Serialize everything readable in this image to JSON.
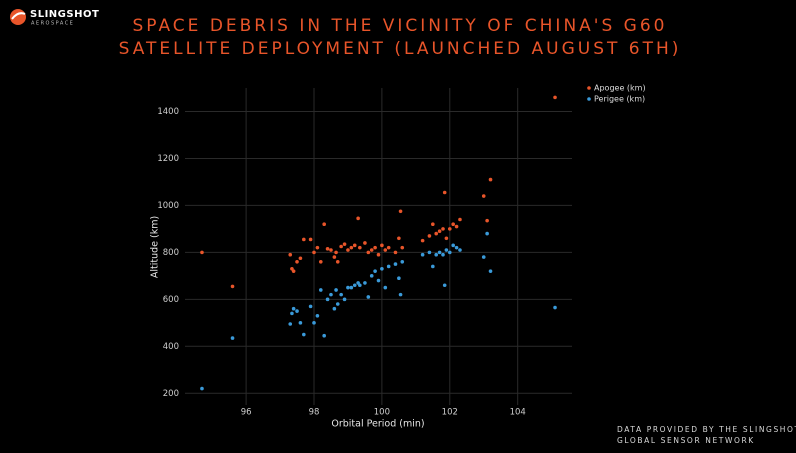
{
  "header": {
    "logo": "SLINGSHOT",
    "logo_sub": "AEROSPACE"
  },
  "footer": [
    "DATA PROVIDED BY THE SLINGSHOT",
    "GLOBAL SENSOR NETWORK"
  ],
  "chart_data": {
    "type": "scatter",
    "title": [
      "SPACE DEBRIS IN THE VICINITY OF CHINA'S G60",
      "SATELLITE DEPLOYMENT (LAUNCHED AUGUST 6TH)"
    ],
    "x_label": "Orbital Period (min)",
    "y_label": "Altitude (km)",
    "xlim": [
      94.2,
      105.6
    ],
    "ylim": [
      150,
      1500
    ],
    "xticks": [
      96,
      98,
      100,
      102,
      104
    ],
    "yticks": [
      200,
      400,
      600,
      800,
      1000,
      1200,
      1400
    ],
    "grid": true,
    "legend": "upper right",
    "series": [
      {
        "name": "Apogee (km)",
        "color": "#e8552a",
        "x": [
          94.7,
          95.6,
          97.3,
          97.35,
          97.4,
          97.5,
          97.6,
          97.7,
          97.9,
          98.0,
          98.1,
          98.2,
          98.3,
          98.4,
          98.5,
          98.6,
          98.65,
          98.7,
          98.8,
          98.9,
          99.0,
          99.1,
          99.2,
          99.3,
          99.35,
          99.5,
          99.6,
          99.7,
          99.8,
          99.9,
          100.0,
          100.1,
          100.2,
          100.4,
          100.5,
          100.55,
          100.6,
          101.2,
          101.4,
          101.5,
          101.6,
          101.7,
          101.8,
          101.85,
          101.9,
          102.0,
          102.1,
          102.2,
          102.3,
          103.0,
          103.1,
          103.2,
          105.1
        ],
        "values": [
          800,
          655,
          790,
          730,
          720,
          760,
          775,
          855,
          855,
          800,
          820,
          760,
          920,
          815,
          810,
          780,
          800,
          760,
          825,
          835,
          810,
          820,
          830,
          945,
          820,
          840,
          800,
          810,
          820,
          790,
          830,
          810,
          820,
          800,
          860,
          975,
          820,
          850,
          870,
          920,
          880,
          890,
          900,
          1055,
          860,
          900,
          920,
          910,
          940,
          1040,
          935,
          1110,
          1460
        ]
      },
      {
        "name": "Perigee (km)",
        "color": "#3a9ad9",
        "x": [
          94.7,
          95.6,
          97.3,
          97.35,
          97.4,
          97.5,
          97.6,
          97.7,
          97.9,
          98.0,
          98.1,
          98.2,
          98.3,
          98.4,
          98.5,
          98.6,
          98.65,
          98.7,
          98.8,
          98.9,
          99.0,
          99.1,
          99.2,
          99.3,
          99.35,
          99.5,
          99.6,
          99.7,
          99.8,
          99.9,
          100.0,
          100.1,
          100.2,
          100.4,
          100.5,
          100.55,
          100.6,
          101.2,
          101.4,
          101.5,
          101.6,
          101.7,
          101.8,
          101.85,
          101.9,
          102.0,
          102.1,
          102.2,
          102.3,
          103.0,
          103.1,
          103.2,
          105.1
        ],
        "values": [
          220,
          435,
          495,
          540,
          560,
          550,
          500,
          450,
          570,
          500,
          530,
          640,
          445,
          600,
          620,
          560,
          640,
          580,
          620,
          600,
          650,
          650,
          660,
          670,
          660,
          670,
          610,
          700,
          720,
          680,
          730,
          650,
          740,
          750,
          690,
          620,
          760,
          790,
          800,
          740,
          790,
          800,
          790,
          660,
          810,
          800,
          830,
          820,
          810,
          780,
          880,
          720,
          565
        ]
      }
    ]
  }
}
